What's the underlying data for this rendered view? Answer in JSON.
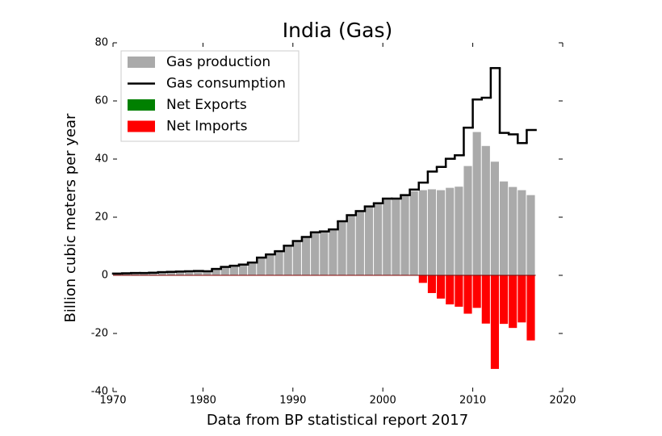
{
  "chart_data": {
    "type": "bar",
    "title": "India (Gas)",
    "x_label": "Data from BP statistical report 2017",
    "y_label": "Billion cubic meters per year",
    "x": [
      1970,
      1971,
      1972,
      1973,
      1974,
      1975,
      1976,
      1977,
      1978,
      1979,
      1980,
      1981,
      1982,
      1983,
      1984,
      1985,
      1986,
      1987,
      1988,
      1989,
      1990,
      1991,
      1992,
      1993,
      1994,
      1995,
      1996,
      1997,
      1998,
      1999,
      2000,
      2001,
      2002,
      2003,
      2004,
      2005,
      2006,
      2007,
      2008,
      2009,
      2010,
      2011,
      2012,
      2013,
      2014,
      2015,
      2016
    ],
    "series": [
      {
        "name": "Gas production",
        "color": "#aaaaaa",
        "kind": "bar",
        "values": [
          0.6,
          0.7,
          0.8,
          0.8,
          0.9,
          1.1,
          1.2,
          1.3,
          1.4,
          1.5,
          1.4,
          2.2,
          2.9,
          3.3,
          3.7,
          4.4,
          6.1,
          7.2,
          8.3,
          10.2,
          11.8,
          13.2,
          14.8,
          15.1,
          15.8,
          18.6,
          20.7,
          22.1,
          23.7,
          24.8,
          26.4,
          26.4,
          27.6,
          28.9,
          29.3,
          29.6,
          29.3,
          30.1,
          30.5,
          37.6,
          49.3,
          44.5,
          39.1,
          32.3,
          30.4,
          29.3,
          27.6
        ]
      },
      {
        "name": "Gas consumption",
        "color": "#000000",
        "kind": "step",
        "values": [
          0.6,
          0.7,
          0.8,
          0.8,
          0.9,
          1.1,
          1.2,
          1.3,
          1.4,
          1.5,
          1.4,
          2.2,
          2.9,
          3.3,
          3.7,
          4.4,
          6.1,
          7.2,
          8.3,
          10.2,
          11.8,
          13.2,
          14.8,
          15.1,
          15.8,
          18.6,
          20.7,
          22.1,
          23.7,
          24.8,
          26.4,
          26.4,
          27.6,
          29.5,
          31.9,
          35.7,
          37.3,
          40.1,
          41.3,
          50.8,
          60.5,
          61.1,
          71.3,
          49.0,
          48.5,
          45.5,
          50.0
        ]
      },
      {
        "name": "Net Exports",
        "color": "#008000",
        "kind": "bar",
        "values": [
          null,
          null,
          null,
          null,
          null,
          null,
          null,
          null,
          null,
          null,
          null,
          null,
          null,
          null,
          null,
          null,
          null,
          null,
          null,
          null,
          null,
          null,
          null,
          null,
          null,
          null,
          null,
          null,
          null,
          null,
          null,
          null,
          null,
          null,
          null,
          null,
          null,
          null,
          null,
          null,
          null,
          null,
          null,
          null,
          null,
          null,
          null
        ]
      },
      {
        "name": "Net Imports",
        "color": "#ff0000",
        "kind": "bar",
        "values": [
          null,
          null,
          null,
          null,
          null,
          null,
          null,
          null,
          null,
          null,
          null,
          null,
          null,
          null,
          null,
          null,
          null,
          null,
          null,
          null,
          null,
          null,
          null,
          null,
          null,
          null,
          null,
          null,
          null,
          null,
          null,
          null,
          null,
          null,
          -2.6,
          -6.1,
          -8.0,
          -10.0,
          -10.8,
          -13.2,
          -11.2,
          -16.6,
          -32.2,
          -16.7,
          -18.1,
          -16.2,
          -22.4
        ]
      }
    ],
    "xlim": [
      1970,
      2020
    ],
    "xticks": [
      1970,
      1980,
      1990,
      2000,
      2010,
      2020
    ],
    "ylim": [
      -40,
      80
    ],
    "yticks": [
      -40,
      -20,
      0,
      20,
      40,
      60,
      80
    ],
    "grid": false,
    "legend": "upper left"
  }
}
